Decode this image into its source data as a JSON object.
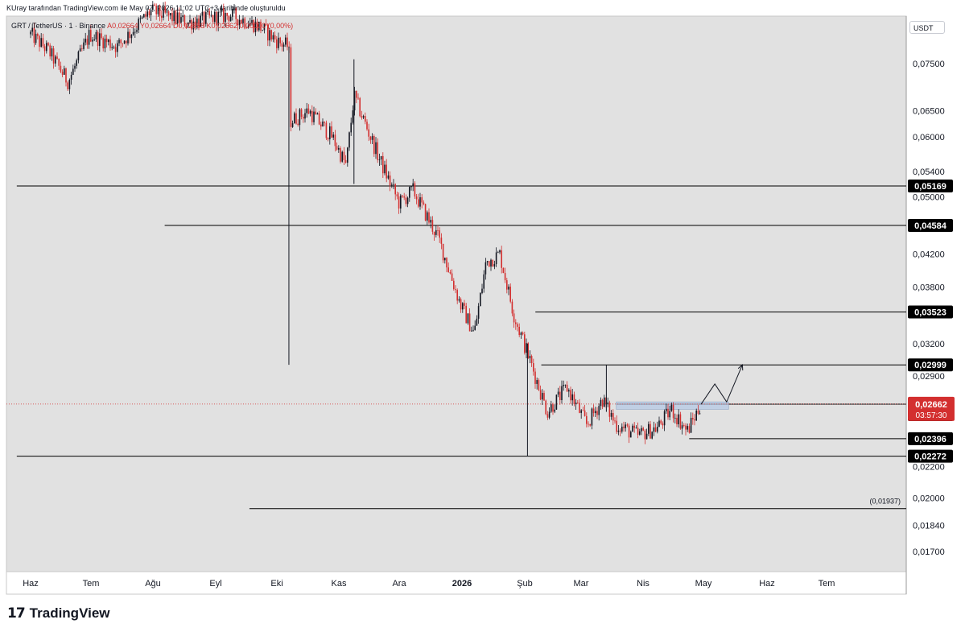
{
  "header": {
    "author_line": "KUray tarafından TradingView.com ile May 07, 2026 11:02 UTC+3 tarihinde oluşturuldu",
    "symbol": "GRT / TetherUS · 1 · Binance",
    "ohlc": "A0,02664  Y0,02664  D0,02658  K0,02662  0,00000 (0,00%)",
    "currency": "USDT"
  },
  "footer": {
    "brand": "TradingView",
    "logo_mark": "17"
  },
  "colors": {
    "background": "#e1e1e1",
    "up_candle": "#131722",
    "down_candle": "#d32f2f",
    "level_line": "#000000",
    "current_price": "#d32f2f",
    "zone": "#b2c8e6"
  },
  "chart_data": {
    "type": "candlestick",
    "scale": "log",
    "x_tick_labels": [
      "Haz",
      "Tem",
      "Ağu",
      "Eyl",
      "Eki",
      "Kas",
      "Ara",
      "2026",
      "Şub",
      "Mar",
      "Nis",
      "May",
      "Haz",
      "Tem"
    ],
    "y_tick_labels": [
      "0,07500",
      "0,06500",
      "0,06000",
      "0,05400",
      "0,05000",
      "0,04200",
      "0,03800",
      "0,03200",
      "0,02900",
      "0,02200",
      "0,02000",
      "0,01840",
      "0,01700"
    ],
    "y_ticks": [
      0.075,
      0.065,
      0.06,
      0.054,
      0.05,
      0.042,
      0.038,
      0.032,
      0.029,
      0.022,
      0.02,
      0.0184,
      0.017
    ],
    "price_path": [
      {
        "x": "2025-06-01",
        "y": 0.082
      },
      {
        "x": "2025-06-10",
        "y": 0.078
      },
      {
        "x": "2025-06-20",
        "y": 0.071
      },
      {
        "x": "2025-07-01",
        "y": 0.082
      },
      {
        "x": "2025-07-15",
        "y": 0.079
      },
      {
        "x": "2025-08-01",
        "y": 0.088
      },
      {
        "x": "2025-08-20",
        "y": 0.085
      },
      {
        "x": "2025-09-10",
        "y": 0.087
      },
      {
        "x": "2025-09-25",
        "y": 0.084
      },
      {
        "x": "2025-10-05",
        "y": 0.08
      },
      {
        "x": "2025-10-10",
        "y": 0.079
      },
      {
        "x": "2025-10-11",
        "y": 0.063
      },
      {
        "x": "2025-10-20",
        "y": 0.065
      },
      {
        "x": "2025-11-01",
        "y": 0.06
      },
      {
        "x": "2025-11-08",
        "y": 0.055
      },
      {
        "x": "2025-11-12",
        "y": 0.068
      },
      {
        "x": "2025-11-25",
        "y": 0.056
      },
      {
        "x": "2025-12-05",
        "y": 0.049
      },
      {
        "x": "2025-12-12",
        "y": 0.051
      },
      {
        "x": "2025-12-25",
        "y": 0.044
      },
      {
        "x": "2026-01-05",
        "y": 0.036
      },
      {
        "x": "2026-01-12",
        "y": 0.033
      },
      {
        "x": "2026-01-18",
        "y": 0.041
      },
      {
        "x": "2026-01-25",
        "y": 0.042
      },
      {
        "x": "2026-02-01",
        "y": 0.035
      },
      {
        "x": "2026-02-10",
        "y": 0.03
      },
      {
        "x": "2026-02-18",
        "y": 0.026
      },
      {
        "x": "2026-02-28",
        "y": 0.028
      },
      {
        "x": "2026-03-10",
        "y": 0.025
      },
      {
        "x": "2026-03-18",
        "y": 0.027
      },
      {
        "x": "2026-03-25",
        "y": 0.025
      },
      {
        "x": "2026-04-05",
        "y": 0.0242
      },
      {
        "x": "2026-04-15",
        "y": 0.0248
      },
      {
        "x": "2026-04-22",
        "y": 0.0262
      },
      {
        "x": "2026-04-30",
        "y": 0.0245
      },
      {
        "x": "2026-05-07",
        "y": 0.0266
      }
    ],
    "spikes": [
      {
        "x": "2025-10-10",
        "high": 0.079,
        "low": 0.03
      },
      {
        "x": "2025-11-12",
        "high": 0.076,
        "low": 0.052
      },
      {
        "x": "2026-02-08",
        "high": 0.032,
        "low": 0.0227
      },
      {
        "x": "2026-03-20",
        "high": 0.03,
        "low": 0.026
      }
    ],
    "horizontal_levels": [
      {
        "value": 0.05169,
        "label": "0,05169",
        "from": "2025-05-25"
      },
      {
        "value": 0.04584,
        "label": "0,04584",
        "from": "2025-08-08"
      },
      {
        "value": 0.03523,
        "label": "0,03523",
        "from": "2026-02-12"
      },
      {
        "value": 0.02999,
        "label": "0,02999",
        "from": "2026-02-15"
      },
      {
        "value": 0.02661,
        "label": "0,02661",
        "from": "2026-03-25"
      },
      {
        "value": 0.02396,
        "label": "0,02396",
        "from": "2026-05-01"
      },
      {
        "value": 0.02272,
        "label": "0,02272",
        "from": "2025-05-25"
      },
      {
        "value": 0.01937,
        "label": "(0,01937)",
        "from": "2025-09-20"
      }
    ],
    "current_price": {
      "value": 0.02662,
      "label": "0,02662",
      "countdown": "03:57:30"
    },
    "zone": {
      "from": "2026-03-25",
      "to": "2026-05-21",
      "top": 0.0268,
      "bottom": 0.0262
    },
    "projection": [
      {
        "x": "2026-05-07",
        "y": 0.0266
      },
      {
        "x": "2026-05-14",
        "y": 0.0283
      },
      {
        "x": "2026-05-20",
        "y": 0.0268
      },
      {
        "x": "2026-05-28",
        "y": 0.03
      }
    ]
  }
}
